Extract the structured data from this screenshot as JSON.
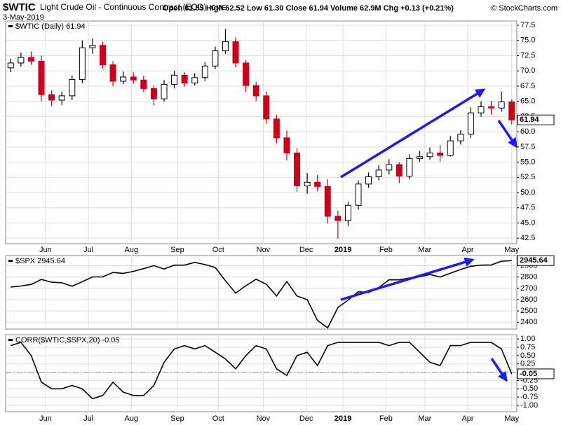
{
  "header": {
    "symbol": "$WTIC",
    "name": "Light Crude Oil - Continuous Contract (EOD)",
    "exchange": "CME",
    "date": "3-May-2019",
    "quote": "Open 61.55 High 62.52 Low 61.30 Close 61.94 Volume 62.9M Chg +0.13 (+0.21%)",
    "source": "© StockCharts.com"
  },
  "chart_data": [
    {
      "type": "candlestick",
      "legend": "$WTIC (Daily) 61.94",
      "up_color": "#000000",
      "down_color": "#d0001a",
      "grid": true,
      "open": [
        70.5,
        71.3,
        72.2,
        71.6,
        66.1,
        65.2,
        65.9,
        68.6,
        73.8,
        74.2,
        71.0,
        68.3,
        69.0,
        68.5,
        67.1,
        65.4,
        67.8,
        69.3,
        68.0,
        68.9,
        70.8,
        73.3,
        74.8,
        71.3,
        67.6,
        65.9,
        62.1,
        59.0,
        56.5,
        51.1,
        51.7,
        51.0,
        46.1,
        45.4,
        47.9,
        51.4,
        52.6,
        53.7,
        54.6,
        52.7,
        55.6,
        55.9,
        56.5,
        56.1,
        58.5,
        59.6,
        63.1,
        64.1,
        63.9,
        64.9
      ],
      "high": [
        72.0,
        73.0,
        73.2,
        72.5,
        66.8,
        66.6,
        69.2,
        75.0,
        75.3,
        74.8,
        71.6,
        69.9,
        69.8,
        69.2,
        67.6,
        68.5,
        70.0,
        69.8,
        69.6,
        71.4,
        74.0,
        76.9,
        75.5,
        71.8,
        68.2,
        66.6,
        62.8,
        60.2,
        57.3,
        53.2,
        52.9,
        52.2,
        47.0,
        48.5,
        52.0,
        53.3,
        54.5,
        55.5,
        55.0,
        56.3,
        56.8,
        57.4,
        57.8,
        59.3,
        60.2,
        64.0,
        65.0,
        65.1,
        66.6,
        65.3
      ],
      "low": [
        69.8,
        70.7,
        71.0,
        65.0,
        64.2,
        64.4,
        65.2,
        68.0,
        72.8,
        70.3,
        67.5,
        67.8,
        67.9,
        66.5,
        64.3,
        64.9,
        67.1,
        67.4,
        67.6,
        68.3,
        70.3,
        72.8,
        70.6,
        66.5,
        65.0,
        61.3,
        58.1,
        55.3,
        50.1,
        49.8,
        50.2,
        44.9,
        42.4,
        44.5,
        47.2,
        50.8,
        52.0,
        53.0,
        51.6,
        52.2,
        55.0,
        55.4,
        55.1,
        55.9,
        57.9,
        59.0,
        62.5,
        62.8,
        63.3,
        61.2
      ],
      "close": [
        71.3,
        72.2,
        71.6,
        66.1,
        65.2,
        65.9,
        68.6,
        73.8,
        74.2,
        71.0,
        68.3,
        69.0,
        68.5,
        67.1,
        65.4,
        67.8,
        69.3,
        68.0,
        68.9,
        70.8,
        73.3,
        74.8,
        71.3,
        67.6,
        65.9,
        62.1,
        59.0,
        56.5,
        51.1,
        51.7,
        51.0,
        46.1,
        45.4,
        47.9,
        51.4,
        52.6,
        53.7,
        54.6,
        52.7,
        55.6,
        55.9,
        56.5,
        56.1,
        58.5,
        59.6,
        63.1,
        64.1,
        63.9,
        64.9,
        61.94
      ],
      "xlim": [
        -0.5,
        49.5
      ],
      "xticks": [
        {
          "value": 3.4,
          "label": "Jun"
        },
        {
          "value": 7.6,
          "label": "Jul"
        },
        {
          "value": 11.8,
          "label": "Aug"
        },
        {
          "value": 16.3,
          "label": "Sep"
        },
        {
          "value": 20.3,
          "label": "Oct"
        },
        {
          "value": 24.7,
          "label": "Nov"
        },
        {
          "value": 28.9,
          "label": "Dec"
        },
        {
          "value": 32.5,
          "label": "2019"
        },
        {
          "value": 36.7,
          "label": "Feb"
        },
        {
          "value": 40.5,
          "label": "Mar"
        },
        {
          "value": 44.7,
          "label": "Apr"
        },
        {
          "value": 49.0,
          "label": "May"
        }
      ],
      "ylim": [
        41.6,
        78.2
      ],
      "yticks": [
        42.5,
        {
          "value": 45,
          "label": "45.0"
        },
        47.5,
        {
          "value": 50,
          "label": "50.0"
        },
        52.5,
        {
          "value": 55,
          "label": "55.0"
        },
        57.5,
        {
          "value": 60,
          "label": "60.0"
        },
        62.5,
        {
          "value": 65,
          "label": "65.0"
        },
        67.5,
        {
          "value": 70,
          "label": "70.0"
        },
        72.5,
        {
          "value": 75,
          "label": "75.0"
        },
        77.5
      ]
    },
    {
      "type": "line",
      "legend": "$SPX 2945.64",
      "color": "#000000",
      "grid": true,
      "values": [
        2712,
        2721,
        2735,
        2779,
        2754,
        2750,
        2718,
        2759,
        2801,
        2802,
        2840,
        2833,
        2850,
        2874,
        2901,
        2872,
        2905,
        2905,
        2930,
        2910,
        2885,
        2767,
        2658,
        2723,
        2781,
        2736,
        2633,
        2760,
        2633,
        2600,
        2417,
        2351,
        2531,
        2596,
        2670,
        2664,
        2707,
        2776,
        2775,
        2792,
        2803,
        2822,
        2800,
        2834,
        2867,
        2895,
        2905,
        2907,
        2940,
        2945.64
      ],
      "xlim": [
        -0.5,
        49.5
      ],
      "ylim": [
        2340,
        2990
      ],
      "yticks": [
        2400,
        2500,
        2600,
        2700,
        2800,
        2900
      ]
    },
    {
      "type": "line",
      "legend": "CORR($WTIC,$SPX,20) -0.05",
      "color": "#000000",
      "grid": true,
      "zero_line": true,
      "values": [
        0.8,
        0.9,
        0.5,
        -0.3,
        -0.5,
        -0.5,
        -0.4,
        -0.5,
        -0.8,
        -0.7,
        -0.3,
        -0.6,
        -0.7,
        -0.7,
        -0.4,
        0.3,
        0.7,
        0.8,
        0.7,
        0.8,
        0.6,
        0.4,
        0.1,
        0.5,
        0.8,
        0.7,
        0.1,
        -0.1,
        0.5,
        0.6,
        0.2,
        0.8,
        0.9,
        0.9,
        0.9,
        0.9,
        0.9,
        0.8,
        0.9,
        0.9,
        0.6,
        0.3,
        0.2,
        0.8,
        0.8,
        0.9,
        0.9,
        0.9,
        0.7,
        -0.05
      ],
      "xlim": [
        -0.5,
        49.5
      ],
      "xticks": [
        {
          "value": 3.4,
          "label": "Jun"
        },
        {
          "value": 7.6,
          "label": "Jul"
        },
        {
          "value": 11.8,
          "label": "Aug"
        },
        {
          "value": 16.3,
          "label": "Sep"
        },
        {
          "value": 20.3,
          "label": "Oct"
        },
        {
          "value": 24.7,
          "label": "Nov"
        },
        {
          "value": 28.9,
          "label": "Dec"
        },
        {
          "value": 32.5,
          "label": "2019"
        },
        {
          "value": 36.7,
          "label": "Feb"
        },
        {
          "value": 40.5,
          "label": "Mar"
        },
        {
          "value": 44.7,
          "label": "Apr"
        },
        {
          "value": 49.0,
          "label": "May"
        }
      ],
      "ylim": [
        -1.19,
        1.13
      ],
      "yticks": [
        {
          "value": 1,
          "label": "1.00"
        },
        {
          "value": 0.75,
          "label": "0.75"
        },
        {
          "value": 0.5,
          "label": "0.50"
        },
        {
          "value": 0.25,
          "label": "0.25"
        },
        {
          "value": 0,
          "label": "0.00"
        },
        {
          "value": -0.25,
          "label": "-0.25"
        },
        {
          "value": -0.5,
          "label": "-0.50"
        },
        {
          "value": -0.75,
          "label": "-0.75"
        },
        {
          "value": -1,
          "label": "-1.00"
        }
      ]
    }
  ]
}
